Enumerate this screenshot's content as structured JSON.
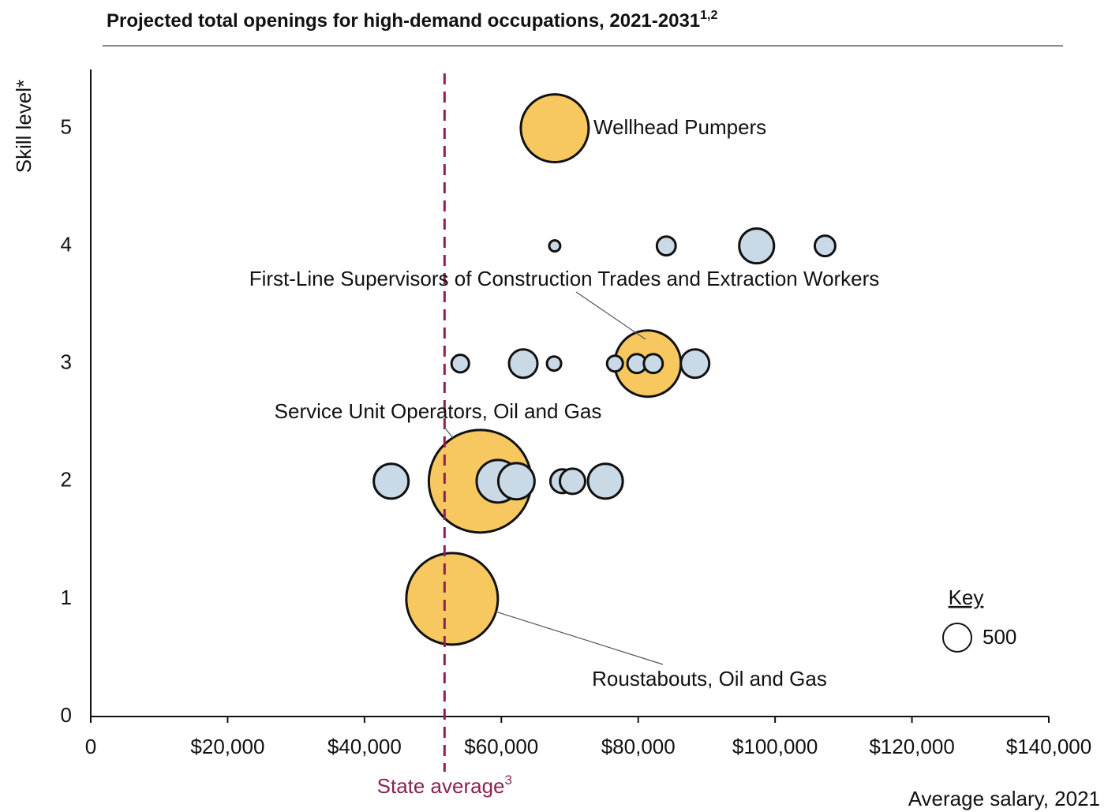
{
  "chart_data": {
    "type": "bubble",
    "title": "Projected total openings for high-demand occupations, 2021-2031",
    "title_superscript": "1,2",
    "x_label": "Average salary, 2021",
    "y_label": "Skill level*",
    "xlim": [
      0,
      140000
    ],
    "ylim": [
      0,
      5.5
    ],
    "xticks": [
      0,
      {
        "value": 20000,
        "label": "$20,000"
      },
      {
        "value": 40000,
        "label": "$40,000"
      },
      {
        "value": 60000,
        "label": "$60,000"
      },
      {
        "value": 80000,
        "label": "$80,000"
      },
      {
        "value": 100000,
        "label": "$100,000"
      },
      {
        "value": 120000,
        "label": "$120,000"
      },
      {
        "value": 140000,
        "label": "$140,000"
      }
    ],
    "yticks": [
      0,
      1,
      2,
      3,
      4,
      5
    ],
    "series": [
      {
        "color": "#f7c85f",
        "x": [
          67800,
          81400,
          56900,
          52800
        ],
        "y": [
          5,
          3,
          2,
          1
        ],
        "sizes": [
          2850,
          2720,
          6520,
          5190
        ]
      },
      {
        "color": "#c9d9e6",
        "x": [
          67800,
          84100,
          97300,
          107300,
          54000,
          63200,
          67700,
          76600,
          79800,
          82200,
          88300,
          43900,
          59500,
          62200,
          68900,
          70400,
          75200
        ],
        "y": [
          4,
          4,
          4,
          4,
          3,
          3,
          3,
          3,
          3,
          3,
          3,
          2,
          2,
          2,
          2,
          2,
          2
        ],
        "sizes": [
          75,
          220,
          750,
          260,
          190,
          500,
          125,
          155,
          220,
          220,
          500,
          750,
          1125,
          815,
          350,
          395,
          750
        ]
      }
    ],
    "annotations": [
      "Wellhead Pumpers",
      "First-Line Supervisors of Construction Trades and Extraction Workers",
      "Service Unit Operators, Oil and Gas",
      "Roustabouts, Oil and Gas"
    ],
    "reference_line": {
      "label": "State average",
      "label_superscript": "3",
      "value": 51700,
      "color": "#8b2252"
    },
    "key": {
      "title": "Key",
      "size": 500
    }
  }
}
